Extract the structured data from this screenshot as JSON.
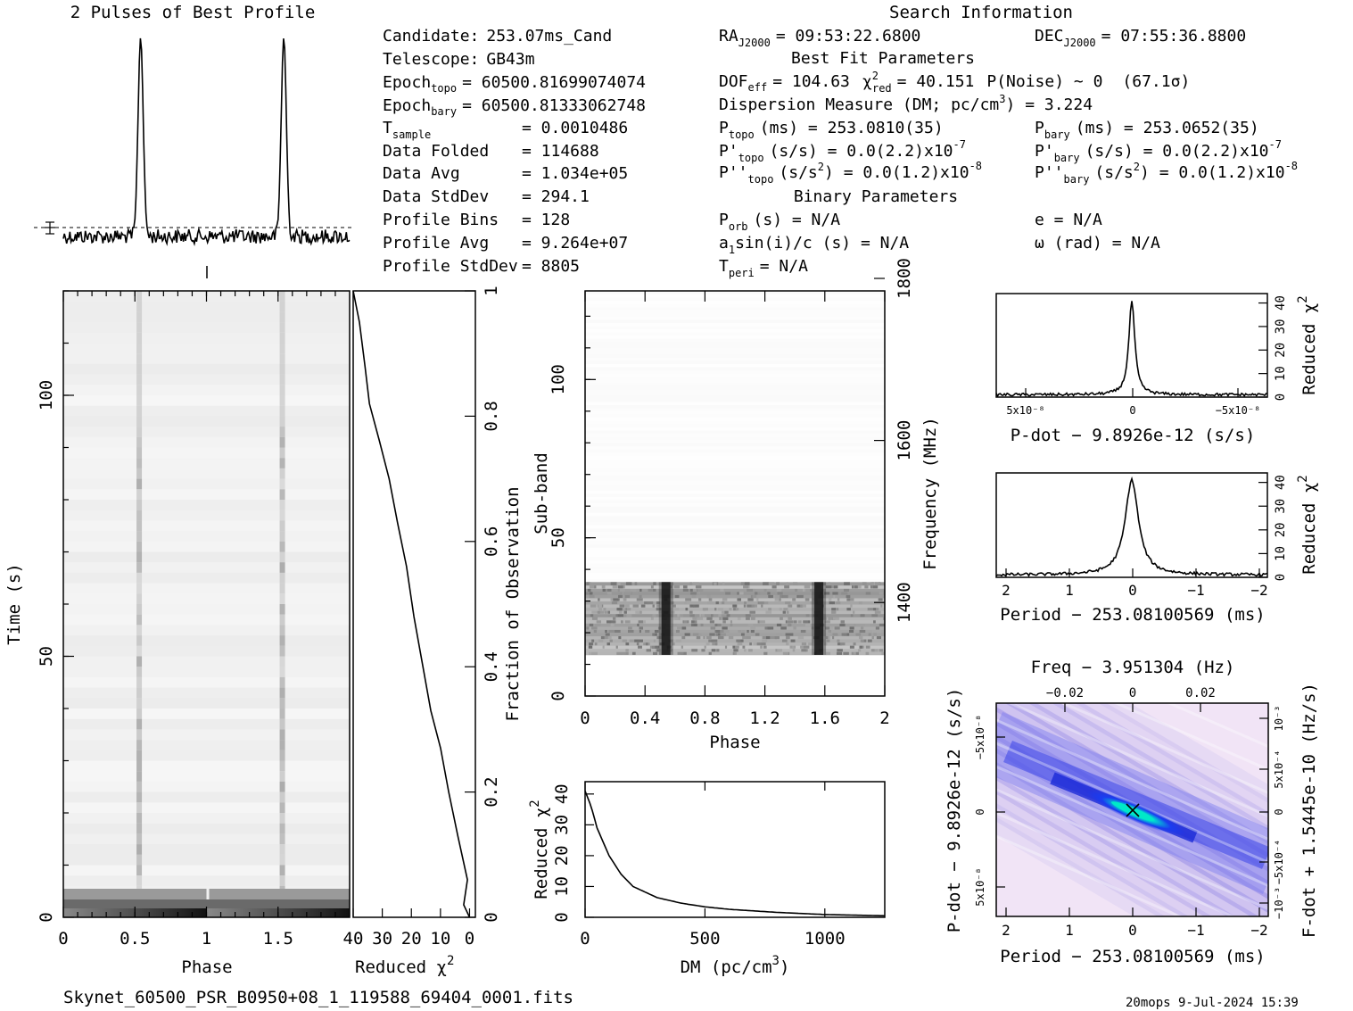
{
  "titles": {
    "profile": "2 Pulses of Best Profile",
    "search": "Search Information",
    "best_fit": "Best Fit Parameters",
    "binary": "Binary Parameters"
  },
  "info_left": [
    {
      "label": "Candidate:",
      "value": "253.07ms_Cand"
    },
    {
      "label": "Telescope:",
      "value": "GB43m"
    },
    {
      "label": "Epoch",
      "sub": "topo",
      "value": "= 60500.81699074074"
    },
    {
      "label": "Epoch",
      "sub": "bary",
      "value": "= 60500.81333062748"
    },
    {
      "label": "T",
      "sub": "sample",
      "value": "=   0.0010486"
    },
    {
      "label": "Data Folded",
      "value": "=   114688"
    },
    {
      "label": "Data Avg",
      "value": "=   1.034e+05"
    },
    {
      "label": "Data StdDev",
      "value": "=   294.1"
    },
    {
      "label": "Profile Bins",
      "value": "=   128"
    },
    {
      "label": "Profile Avg",
      "value": "=   9.264e+07"
    },
    {
      "label": "Profile StdDev",
      "value": "=  8805"
    }
  ],
  "info_mid": {
    "ra": "RA",
    "ra_sub": "J2000",
    "ra_val": "= 09:53:22.6800",
    "dec": "DEC",
    "dec_sub": "J2000",
    "dec_val": "= 07:55:36.8800",
    "dof": "DOF",
    "dof_sub": "eff",
    "dof_val": "= 104.63",
    "chi": "χ",
    "chi_sup": "2",
    "chi_sub": "red",
    "chi_val": "= 40.151",
    "pnoise": "P(Noise) ~ 0",
    "sigma": "(67.1σ)",
    "dm_line": "Dispersion Measure (DM; pc/cm",
    "dm_sup": "3",
    "dm_val": ") = 3.224",
    "ptopo_label": "P",
    "ptopo_sub": "topo",
    "ptopo_val": "(ms) =  253.0810(35)",
    "pbary_label": "P",
    "pbary_sub": "bary",
    "pbary_val": "(ms) =  253.0652(35)",
    "pdtopo_label": "P'",
    "pdtopo_sub": "topo",
    "pdtopo_val": "(s/s) = 0.0(2.2)x10",
    "pdtopo_exp": "-7",
    "pdbary_label": "P'",
    "pdbary_sub": "bary",
    "pdbary_val": "(s/s) = 0.0(2.2)x10",
    "pdbary_exp": "-7",
    "pddtopo_label": "P''",
    "pddtopo_sub": "topo",
    "pddtopo_val": "(s/s",
    "pddtopo_unit_sup": "2",
    "pddtopo_val2": ") = 0.0(1.2)x10",
    "pddtopo_exp": "-8",
    "pddbary_label": "P''",
    "pddbary_sub": "bary",
    "pddbary_val": "(s/s",
    "pddbary_unit_sup": "2",
    "pddbary_val2": ") = 0.0(1.2)x10",
    "pddbary_exp": "-8",
    "porb_label": "P",
    "porb_sub": "orb",
    "porb_val": "(s) = N/A",
    "e_val": "e = N/A",
    "a1_label": "a",
    "a1_sub": "1",
    "a1_val": "sin(i)/c (s) = N/A",
    "omega_val": "ω (rad) = N/A",
    "tperi_label": "T",
    "tperi_sub": "peri",
    "tperi_val": "= N/A"
  },
  "labels": {
    "time_axis": "Time (s)",
    "phase": "Phase",
    "reduced_chi": "Reduced χ",
    "chi_sup": "2",
    "fraction": "Fraction of Observation",
    "subband": "Sub-band",
    "frequency": "Frequency (MHz)",
    "dm_axis": "DM (pc/cm",
    "dm_axis_sup": "3",
    "dm_axis_end": ")",
    "pdot_axis": "P-dot − 9.8926e-12 (s/s)",
    "period_axis": "Period − 253.08100569 (ms)",
    "freq_axis": "Freq − 3.951304 (Hz)",
    "fdot_axis": "F-dot + 1.5445e-10 (Hz/s)"
  },
  "footer": {
    "filename": "Skynet_60500_PSR_B0950+08_1_119588_69404_0001.fits",
    "stamp": "20mops  9-Jul-2024 15:39"
  },
  "ticks": {
    "time": [
      "0",
      "50",
      "100"
    ],
    "phase_main": [
      "0",
      "0.5",
      "1",
      "1.5"
    ],
    "chi_bottom": [
      "40",
      "30",
      "20",
      "10",
      "0"
    ],
    "fraction": [
      "0",
      "0.2",
      "0.4",
      "0.6",
      "0.8",
      "1"
    ],
    "subband": [
      "0",
      "50",
      "100"
    ],
    "phase_sub": [
      "0",
      "0.4",
      "0.8",
      "1.2",
      "1.6",
      "2"
    ],
    "freq": [
      "1400",
      "1600",
      "1800"
    ],
    "dm_chi": [
      "0",
      "10",
      "20",
      "30",
      "40"
    ],
    "dm": [
      "0",
      "500",
      "1000"
    ],
    "right_chi": [
      "0",
      "10",
      "20",
      "30",
      "40"
    ],
    "pdot_x": [
      "5x10⁻⁸",
      "0",
      "−5x10⁻⁸"
    ],
    "period_x": [
      "2",
      "1",
      "0",
      "−1",
      "−2"
    ],
    "freq_top": [
      "−0.02",
      "0",
      "0.02"
    ],
    "pdot_y": [
      "−5x10⁻⁸",
      "0",
      "5x10⁻⁸"
    ],
    "fdot_y": [
      "10⁻³",
      "5x10⁻⁴",
      "0",
      "−5x10⁻⁴",
      "−10⁻³"
    ]
  },
  "chart_data": [
    {
      "type": "line",
      "title": "2 Pulses of Best Profile",
      "x": [
        0,
        0.5,
        0.52,
        0.54,
        0.56,
        0.58,
        1.0,
        1.5,
        1.52,
        1.54,
        1.56,
        1.58,
        2.0
      ],
      "values": [
        0,
        0,
        0.85,
        1.0,
        0.45,
        0.0,
        0,
        0,
        0.85,
        1.0,
        0.45,
        0.0,
        0
      ],
      "peaks_phase": [
        0.54,
        1.54
      ]
    },
    {
      "type": "heatmap",
      "xlabel": "Phase",
      "ylabel": "Time (s)",
      "xlim": [
        0,
        2
      ],
      "ylim": [
        0,
        120
      ],
      "pulse_phases": [
        0.53,
        1.53
      ]
    },
    {
      "type": "line",
      "xlabel": "Reduced χ2",
      "ylabel": "Fraction of Observation",
      "x": [
        40,
        38,
        36,
        34,
        31,
        28,
        25,
        22,
        19,
        16,
        13,
        10,
        7,
        4,
        1,
        2,
        0
      ],
      "y": [
        1,
        0.95,
        0.88,
        0.82,
        0.76,
        0.7,
        0.63,
        0.56,
        0.48,
        0.4,
        0.33,
        0.27,
        0.2,
        0.13,
        0.06,
        0.02,
        0
      ]
    },
    {
      "type": "heatmap",
      "xlabel": "Phase",
      "ylabel": "Sub-band",
      "xlim": [
        0,
        2
      ],
      "ylim": [
        0,
        128
      ],
      "y2label": "Frequency (MHz)",
      "y2lim": [
        1300,
        1800
      ],
      "active_subbands": [
        13,
        36
      ],
      "pulse_phases": [
        0.54,
        1.56
      ]
    },
    {
      "type": "line",
      "xlabel": "DM (pc/cm3)",
      "ylabel": "Reduced χ2",
      "xlim": [
        0,
        1250
      ],
      "ylim": [
        0,
        44
      ],
      "x": [
        0,
        25,
        50,
        100,
        150,
        200,
        300,
        400,
        500,
        600,
        800,
        1000,
        1250
      ],
      "y": [
        41,
        36,
        29,
        20,
        14,
        10,
        6.4,
        4.6,
        3.4,
        2.6,
        1.6,
        0.9,
        0.5
      ]
    },
    {
      "type": "line",
      "xlabel": "P-dot − 9.8926e-12 (s/s)",
      "ylabel": "Reduced χ2",
      "ylim": [
        0,
        44
      ],
      "x": [
        8e-08,
        4e-08,
        2e-08,
        1e-08,
        5e-09,
        2e-09,
        0,
        -2e-09,
        -5e-09,
        -1e-08,
        -2e-08,
        -4e-08,
        -8e-08
      ],
      "y": [
        1.5,
        2,
        3,
        5,
        9,
        20,
        40,
        20,
        9,
        5,
        3,
        2,
        1.5
      ]
    },
    {
      "type": "line",
      "xlabel": "Period − 253.08100569 (ms)",
      "ylabel": "Reduced χ2",
      "xlim": [
        2.1,
        -2.1
      ],
      "ylim": [
        0,
        44
      ],
      "x": [
        2.1,
        1.5,
        1.0,
        0.6,
        0.3,
        0.15,
        0,
        -0.15,
        -0.3,
        -0.6,
        -1.0,
        -1.5,
        -2.1
      ],
      "y": [
        0.8,
        1.2,
        2,
        4,
        10,
        24,
        40,
        24,
        10,
        4,
        2,
        1.2,
        0.8
      ]
    },
    {
      "type": "heatmap",
      "xlabel": "Period − 253.08100569 (ms)",
      "ylabel": "P-dot − 9.8926e-12 (s/s)",
      "x2label": "Freq − 3.951304 (Hz)",
      "y2label": "F-dot + 1.5445e-10 (Hz/s)",
      "xlim": [
        2.1,
        -2.1
      ],
      "ylim": [
        8e-08,
        -8e-08
      ]
    }
  ],
  "colors": {
    "ink": "#000000",
    "grey_pulse": "#3a3a3a",
    "map_bg": "#f3e6f7",
    "map_mid": "#8a8ff0",
    "map_hot": "#1d2ee6",
    "map_core": "#00e6d0"
  }
}
